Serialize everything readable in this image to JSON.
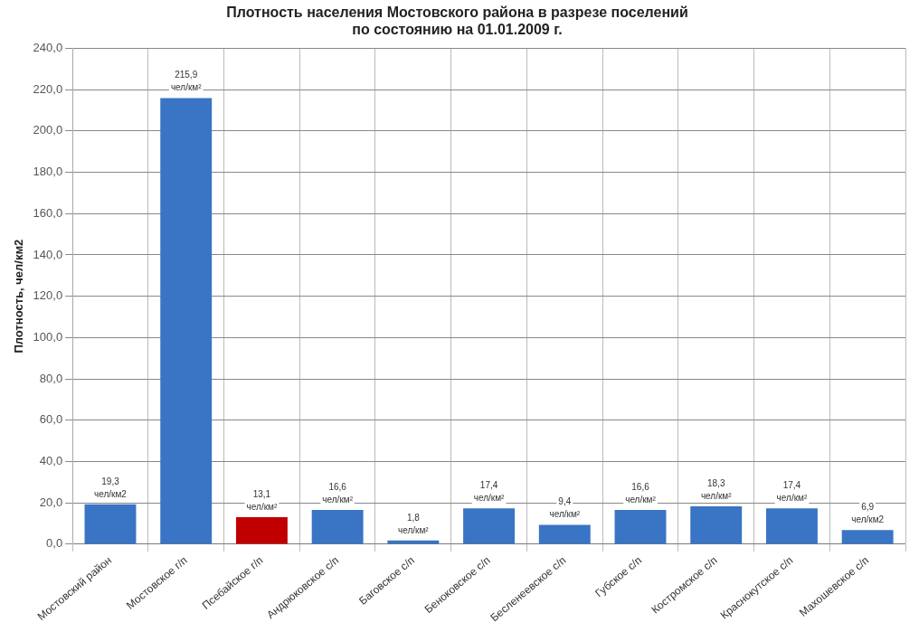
{
  "chart_data": {
    "type": "bar",
    "title": "Плотность населения Мостовского района в разрезе поселений\nпо состоянию на 01.01.2009 г.",
    "ylabel": "Плотность, чел/км2",
    "categories": [
      "Мостовский район",
      "Мостовское г/п",
      "Псебайское г/п",
      "Андрюковское с/п",
      "Баговское с/п",
      "Беноковское с/п",
      "Бесленеевское с/п",
      "Губское с/п",
      "Костромское с/п",
      "Краснокутское с/п",
      "Махошевское с/п"
    ],
    "values": [
      19.3,
      215.9,
      13.1,
      16.6,
      1.8,
      17.4,
      9.4,
      16.6,
      18.3,
      17.4,
      6.9
    ],
    "colors": [
      "#3a74c4",
      "#3a74c4",
      "#c00000",
      "#3a74c4",
      "#3a74c4",
      "#3a74c4",
      "#3a74c4",
      "#3a74c4",
      "#3a74c4",
      "#3a74c4",
      "#3a74c4"
    ],
    "value_labels": [
      "19,3\nчел/км2",
      "215,9\nчел/км²",
      "13,1\nчел/км²",
      "16,6\nчел/км²",
      "1,8\nчел/км²",
      "17,4\nчел/км²",
      "9,4\nчел/км²",
      "16,6\nчел/км²",
      "18,3\nчел/км²",
      "17,4\nчел/км²",
      "6,9\nчел/км2"
    ],
    "ylim": [
      0,
      240
    ],
    "yticks": [
      {
        "value": 0,
        "label": "0,0"
      },
      {
        "value": 20,
        "label": "20,0"
      },
      {
        "value": 40,
        "label": "40,0"
      },
      {
        "value": 60,
        "label": "60,0"
      },
      {
        "value": 80,
        "label": "80,0"
      },
      {
        "value": 100,
        "label": "100,0"
      },
      {
        "value": 120,
        "label": "120,0"
      },
      {
        "value": 140,
        "label": "140,0"
      },
      {
        "value": 160,
        "label": "160,0"
      },
      {
        "value": 180,
        "label": "180,0"
      },
      {
        "value": 200,
        "label": "200,0"
      },
      {
        "value": 220,
        "label": "220,0"
      },
      {
        "value": 240,
        "label": "240,0"
      }
    ],
    "grid": true
  }
}
